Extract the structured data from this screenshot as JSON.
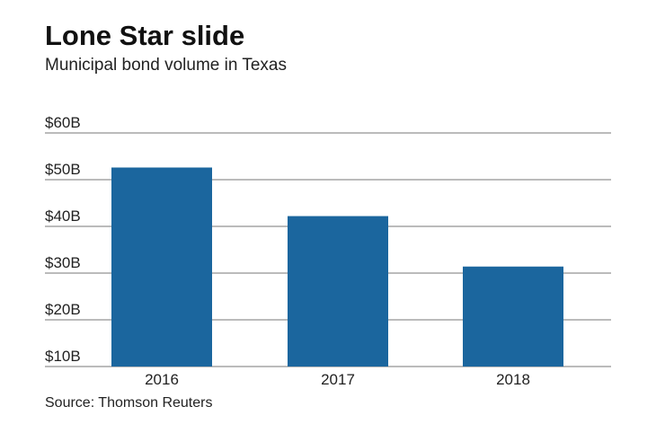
{
  "chart_data": {
    "type": "bar",
    "title": "Lone Star slide",
    "subtitle": "Municipal bond volume in Texas",
    "source": "Source: Thomson Reuters",
    "categories": [
      "2016",
      "2017",
      "2018"
    ],
    "values": [
      52.6,
      42.2,
      31.4
    ],
    "unit": "$B",
    "ylim": [
      10,
      60
    ],
    "yticks": [
      10,
      20,
      30,
      40,
      50,
      60
    ],
    "ytick_labels": [
      "$10B",
      "$20B",
      "$30B",
      "$40B",
      "$50B",
      "$60B"
    ],
    "grid": true,
    "bar_color": "#1b669e",
    "grid_color": "#bbbbbb"
  }
}
